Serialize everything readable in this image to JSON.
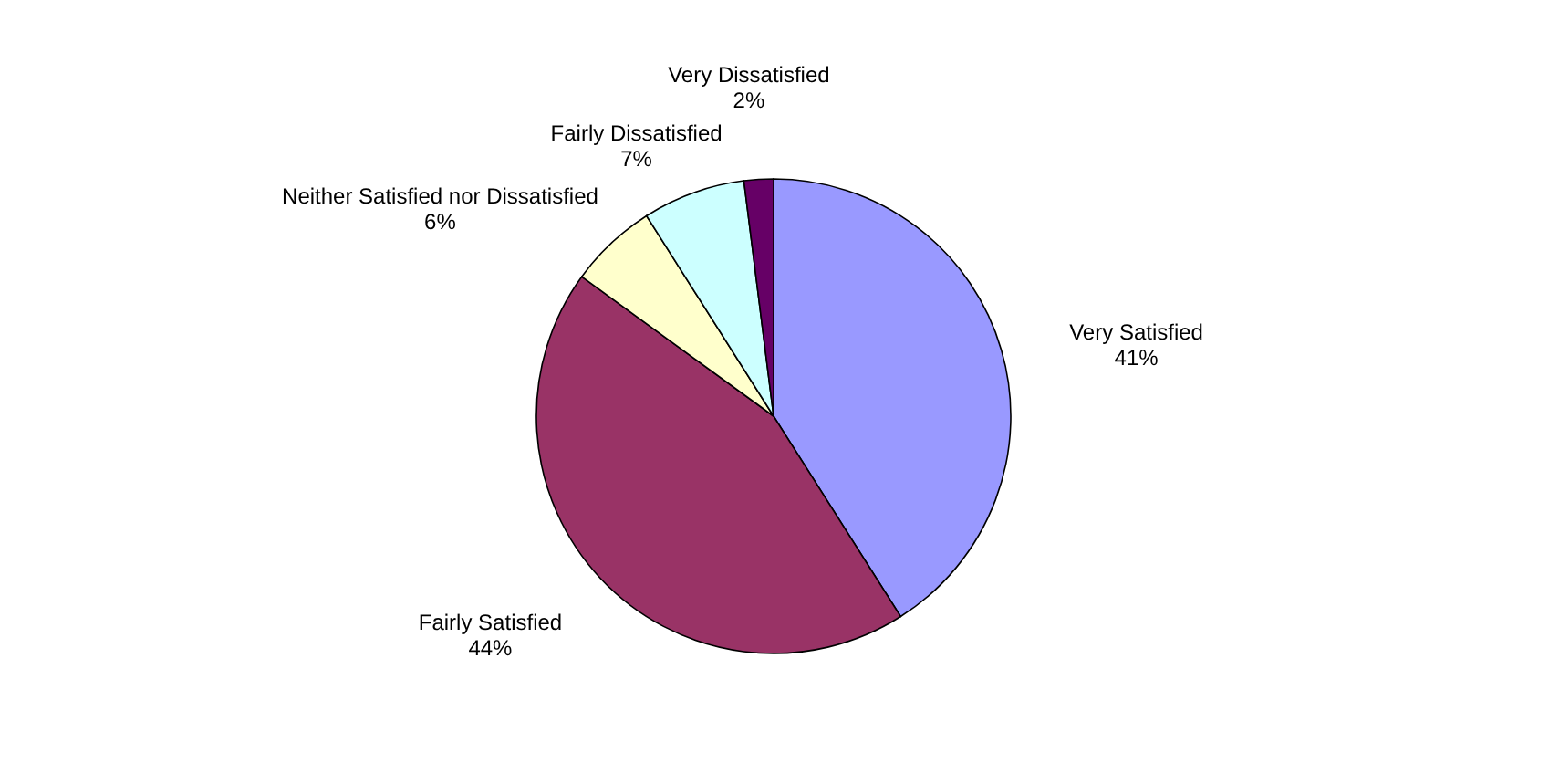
{
  "chart_data": {
    "type": "pie",
    "categories": [
      "Very Satisfied",
      "Fairly Satisfied",
      "Neither Satisfied nor Dissatisfied",
      "Fairly Dissatisfied",
      "Very Dissatisfied"
    ],
    "values": [
      41,
      44,
      6,
      7,
      2
    ],
    "colors": [
      "#9999ff",
      "#993366",
      "#ffffcc",
      "#ccffff",
      "#660066"
    ],
    "value_labels": [
      "41%",
      "44%",
      "6%",
      "7%",
      "2%"
    ]
  }
}
